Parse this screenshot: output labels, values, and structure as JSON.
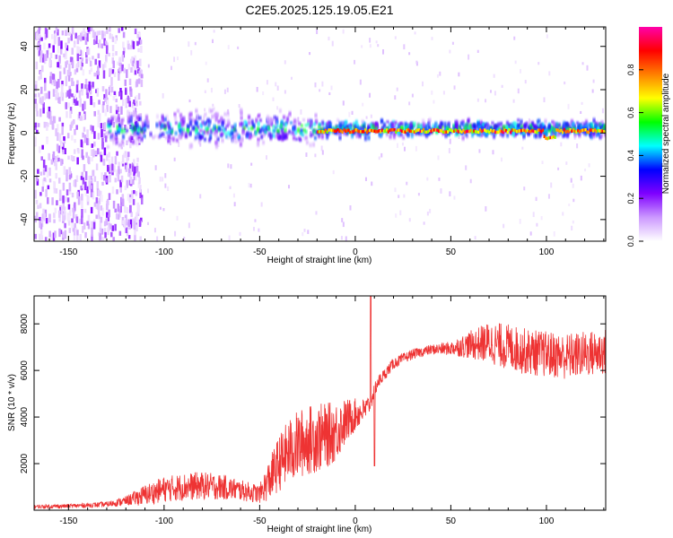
{
  "title": "C2E5.2025.125.19.05.E21",
  "chart_data": [
    {
      "type": "heatmap",
      "xlabel": "Height of straight line (km)",
      "ylabel": "Frequency (Hz)",
      "xlim": [
        -168,
        131
      ],
      "ylim": [
        -50,
        49
      ],
      "xticks": [
        -150,
        -100,
        -50,
        0,
        50,
        100
      ],
      "yticks": [
        -40,
        -20,
        0,
        20,
        40
      ],
      "grid": false,
      "colorbar": {
        "label": "Normalized spectral amplitude",
        "ticks": [
          0.0,
          0.2,
          0.4,
          0.6,
          0.8
        ],
        "range": [
          0,
          1
        ],
        "colors": [
          "#ffffff",
          "#cc99ff",
          "#7f00ff",
          "#0000ff",
          "#00ffff",
          "#00ff00",
          "#ffff00",
          "#ff8000",
          "#ff0000",
          "#ff00aa"
        ]
      },
      "features": [
        {
          "region": "broadband noise",
          "x_range": [
            -168,
            -112
          ],
          "freq_range": [
            -50,
            49
          ],
          "amplitude": 0.15
        },
        {
          "region": "band widening",
          "x_range": [
            -130,
            -20
          ],
          "freq_range": [
            -8,
            10
          ],
          "amplitude": 0.45
        },
        {
          "region": "narrow carrier",
          "x_range": [
            -20,
            131
          ],
          "freq_range": [
            -1,
            3
          ],
          "amplitude": 0.95
        }
      ]
    },
    {
      "type": "line",
      "xlabel": "Height of straight line (km)",
      "ylabel": "SNR (10 * v/v)",
      "xlim": [
        -168,
        131
      ],
      "ylim": [
        0,
        9200
      ],
      "xticks": [
        -150,
        -100,
        -50,
        0,
        50,
        100
      ],
      "yticks": [
        2000,
        4000,
        6000,
        8000
      ],
      "grid": false,
      "series": [
        {
          "color": "#ee3333",
          "x": [
            -168,
            -150,
            -130,
            -120,
            -110,
            -100,
            -90,
            -80,
            -70,
            -60,
            -50,
            -45,
            -40,
            -35,
            -30,
            -25,
            -20,
            -15,
            -10,
            -5,
            0,
            5,
            8,
            10,
            12,
            15,
            20,
            30,
            40,
            50,
            60,
            70,
            80,
            90,
            100,
            110,
            120,
            131
          ],
          "y": [
            150,
            180,
            250,
            400,
            650,
            900,
            1000,
            1050,
            1000,
            850,
            700,
            1300,
            2000,
            2500,
            2800,
            3000,
            3100,
            3200,
            3400,
            3800,
            4100,
            4300,
            4600,
            5200,
            5500,
            5800,
            6300,
            6700,
            6900,
            6950,
            7100,
            7200,
            7000,
            6800,
            6700,
            6600,
            6700,
            6800
          ],
          "noise": [
            80,
            90,
            120,
            200,
            450,
            550,
            600,
            600,
            550,
            450,
            400,
            900,
            1200,
            1400,
            1500,
            1500,
            1500,
            1400,
            1300,
            1000,
            700,
            500,
            400,
            350,
            300,
            250,
            250,
            220,
            220,
            300,
            600,
            900,
            1000,
            1000,
            1000,
            1000,
            1000,
            1000
          ]
        }
      ],
      "annotations": [
        {
          "x": 8,
          "y": 9200,
          "note": "spike"
        },
        {
          "x": 10,
          "y": 1900,
          "note": "dip"
        }
      ]
    }
  ]
}
